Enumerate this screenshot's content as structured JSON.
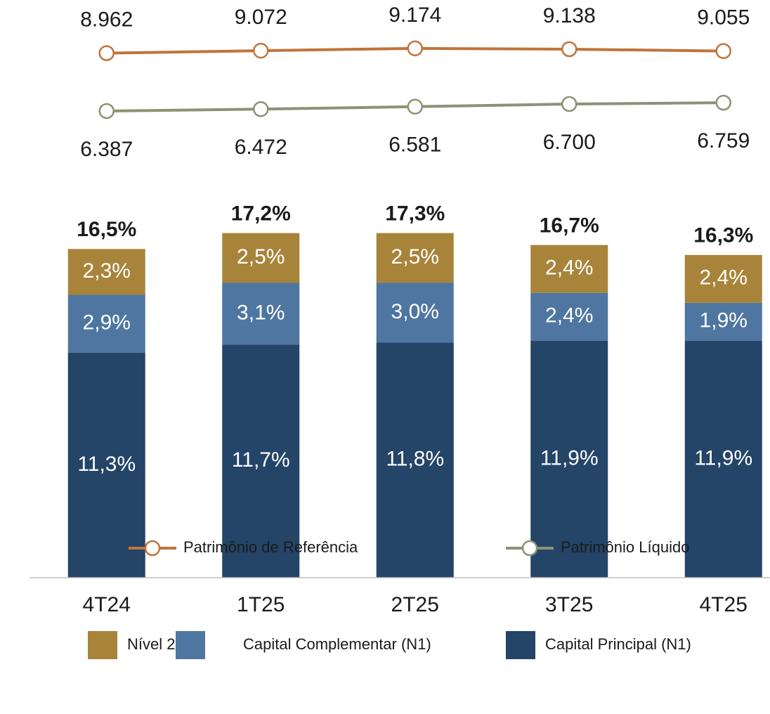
{
  "chart_data": {
    "type": "bar",
    "stacked": true,
    "categories": [
      "4T24",
      "1T25",
      "2T25",
      "3T25",
      "4T25"
    ],
    "ylim": [
      0,
      29
    ],
    "y2lim": [
      4450,
      10700
    ],
    "series": [
      {
        "name": "Patrimônio de Referência",
        "type": "line",
        "axis": "y2",
        "color": "#c0743a",
        "values": [
          8962,
          9072,
          9174,
          9138,
          9055
        ],
        "value_labels": [
          "8.962",
          "9.072",
          "9.174",
          "9.138",
          "9.055"
        ],
        "label_position": "above"
      },
      {
        "name": "Patrimônio Líquido",
        "type": "line",
        "axis": "y2",
        "color": "#8a9374",
        "values": [
          6387,
          6472,
          6581,
          6700,
          6759
        ],
        "value_labels": [
          "6.387",
          "6.472",
          "6.581",
          "6.700",
          "6.759"
        ],
        "label_position": "below"
      },
      {
        "name": "Nível 2",
        "type": "bar",
        "color": "#a8843a",
        "values": [
          2.3,
          2.5,
          2.5,
          2.4,
          2.4
        ],
        "value_labels": [
          "2,3%",
          "2,5%",
          "2,5%",
          "2,4%",
          "2,4%"
        ]
      },
      {
        "name": "Capital Complementar (N1)",
        "type": "bar",
        "color": "#4f76a0",
        "values": [
          2.9,
          3.1,
          3.0,
          2.4,
          1.9
        ],
        "value_labels": [
          "2,9%",
          "3,1%",
          "3,0%",
          "2,4%",
          "1,9%"
        ]
      },
      {
        "name": "Capital Principal (N1)",
        "type": "bar",
        "color": "#244468",
        "values": [
          11.3,
          11.7,
          11.8,
          11.9,
          11.9
        ],
        "value_labels": [
          "11,3%",
          "11,7%",
          "11,8%",
          "11,9%",
          "11,9%"
        ]
      }
    ],
    "totals": [
      16.5,
      17.2,
      17.3,
      16.7,
      16.3
    ],
    "total_labels": [
      "16,5%",
      "17,2%",
      "17,3%",
      "16,7%",
      "16,3%"
    ]
  }
}
